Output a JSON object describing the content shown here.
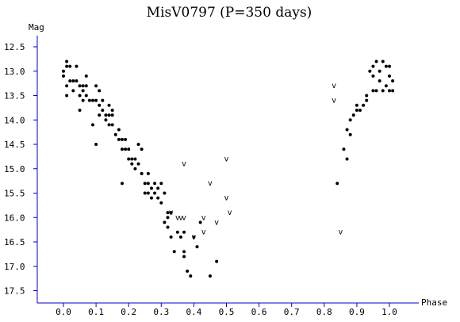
{
  "chart_data": {
    "type": "scatter",
    "title": "MisV0797 (P=350 days)",
    "xlabel": "Phase",
    "ylabel": "Mag",
    "xlim": [
      -0.08,
      1.08
    ],
    "ylim": [
      12.25,
      17.7
    ],
    "y_inverted": true,
    "grid": false,
    "x_ticks": [
      "0.0",
      "0.1",
      "0.2",
      "0.3",
      "0.4",
      "0.5",
      "0.6",
      "0.7",
      "0.8",
      "0.9",
      "1.0"
    ],
    "y_ticks": [
      "12.5",
      "13.0",
      "13.5",
      "14.0",
      "14.5",
      "15.0",
      "15.5",
      "16.0",
      "16.5",
      "17.0",
      "17.5"
    ],
    "series": [
      {
        "marker": "dot",
        "points": [
          [
            0.0,
            13.0
          ],
          [
            0.01,
            12.8
          ],
          [
            0.01,
            12.9
          ],
          [
            0.02,
            12.9
          ],
          [
            0.0,
            13.1
          ],
          [
            0.01,
            13.3
          ],
          [
            0.01,
            13.5
          ],
          [
            0.02,
            13.2
          ],
          [
            0.03,
            13.2
          ],
          [
            0.04,
            13.2
          ],
          [
            0.03,
            13.4
          ],
          [
            0.04,
            12.9
          ],
          [
            0.05,
            13.3
          ],
          [
            0.05,
            13.5
          ],
          [
            0.06,
            13.4
          ],
          [
            0.06,
            13.3
          ],
          [
            0.06,
            13.6
          ],
          [
            0.05,
            13.8
          ],
          [
            0.07,
            13.1
          ],
          [
            0.07,
            13.3
          ],
          [
            0.07,
            13.5
          ],
          [
            0.08,
            13.6
          ],
          [
            0.09,
            13.6
          ],
          [
            0.09,
            14.1
          ],
          [
            0.1,
            13.3
          ],
          [
            0.1,
            13.6
          ],
          [
            0.11,
            13.4
          ],
          [
            0.11,
            13.7
          ],
          [
            0.11,
            13.9
          ],
          [
            0.12,
            13.6
          ],
          [
            0.12,
            13.8
          ],
          [
            0.13,
            14.0
          ],
          [
            0.13,
            13.9
          ],
          [
            0.14,
            13.7
          ],
          [
            0.14,
            13.9
          ],
          [
            0.15,
            13.8
          ],
          [
            0.15,
            13.9
          ],
          [
            0.15,
            14.1
          ],
          [
            0.14,
            14.1
          ],
          [
            0.16,
            14.3
          ],
          [
            0.17,
            14.2
          ],
          [
            0.17,
            14.4
          ],
          [
            0.18,
            14.6
          ],
          [
            0.18,
            14.4
          ],
          [
            0.19,
            14.4
          ],
          [
            0.19,
            14.6
          ],
          [
            0.1,
            14.5
          ],
          [
            0.2,
            14.8
          ],
          [
            0.2,
            14.6
          ],
          [
            0.21,
            14.8
          ],
          [
            0.21,
            14.9
          ],
          [
            0.22,
            14.8
          ],
          [
            0.22,
            15.0
          ],
          [
            0.23,
            14.5
          ],
          [
            0.23,
            14.9
          ],
          [
            0.24,
            14.6
          ],
          [
            0.24,
            15.1
          ],
          [
            0.25,
            15.3
          ],
          [
            0.25,
            15.5
          ],
          [
            0.26,
            15.1
          ],
          [
            0.26,
            15.3
          ],
          [
            0.26,
            15.5
          ],
          [
            0.27,
            15.4
          ],
          [
            0.27,
            15.6
          ],
          [
            0.28,
            15.3
          ],
          [
            0.28,
            15.5
          ],
          [
            0.29,
            15.4
          ],
          [
            0.29,
            15.6
          ],
          [
            0.3,
            15.7
          ],
          [
            0.3,
            15.3
          ],
          [
            0.31,
            15.5
          ],
          [
            0.31,
            16.1
          ],
          [
            0.32,
            15.9
          ],
          [
            0.32,
            16.2
          ],
          [
            0.33,
            16.4
          ],
          [
            0.33,
            15.9
          ],
          [
            0.34,
            16.7
          ],
          [
            0.35,
            16.3
          ],
          [
            0.36,
            16.4
          ],
          [
            0.37,
            16.3
          ],
          [
            0.37,
            16.7
          ],
          [
            0.37,
            16.8
          ],
          [
            0.38,
            17.1
          ],
          [
            0.39,
            17.2
          ],
          [
            0.4,
            16.4
          ],
          [
            0.41,
            16.6
          ],
          [
            0.42,
            16.1
          ],
          [
            0.45,
            17.2
          ],
          [
            0.47,
            16.9
          ],
          [
            0.32,
            16.0
          ],
          [
            0.18,
            15.3
          ],
          [
            0.84,
            15.3
          ],
          [
            0.86,
            14.6
          ],
          [
            0.87,
            14.8
          ],
          [
            0.87,
            14.2
          ],
          [
            0.88,
            14.3
          ],
          [
            0.88,
            14.0
          ],
          [
            0.89,
            13.9
          ],
          [
            0.9,
            13.8
          ],
          [
            0.9,
            13.7
          ],
          [
            0.91,
            13.8
          ],
          [
            0.92,
            13.7
          ],
          [
            0.93,
            13.6
          ],
          [
            0.93,
            13.5
          ],
          [
            0.94,
            13.0
          ],
          [
            0.95,
            12.9
          ],
          [
            0.95,
            13.1
          ],
          [
            0.95,
            13.4
          ],
          [
            0.96,
            12.8
          ],
          [
            0.96,
            13.4
          ],
          [
            0.97,
            13.2
          ],
          [
            0.97,
            13.0
          ],
          [
            0.98,
            12.8
          ],
          [
            0.98,
            13.4
          ],
          [
            0.99,
            12.9
          ],
          [
            0.99,
            13.3
          ],
          [
            1.0,
            13.1
          ],
          [
            1.0,
            13.4
          ],
          [
            1.0,
            12.9
          ],
          [
            1.01,
            13.2
          ],
          [
            1.01,
            13.4
          ]
        ]
      },
      {
        "marker": "v",
        "points": [
          [
            0.37,
            14.9
          ],
          [
            0.33,
            15.9
          ],
          [
            0.35,
            16.0
          ],
          [
            0.36,
            16.0
          ],
          [
            0.37,
            16.0
          ],
          [
            0.4,
            16.4
          ],
          [
            0.43,
            16.0
          ],
          [
            0.43,
            16.3
          ],
          [
            0.45,
            15.3
          ],
          [
            0.47,
            16.1
          ],
          [
            0.5,
            14.8
          ],
          [
            0.5,
            15.6
          ],
          [
            0.51,
            15.9
          ],
          [
            0.83,
            13.3
          ],
          [
            0.83,
            13.6
          ],
          [
            0.85,
            16.3
          ]
        ]
      }
    ]
  }
}
